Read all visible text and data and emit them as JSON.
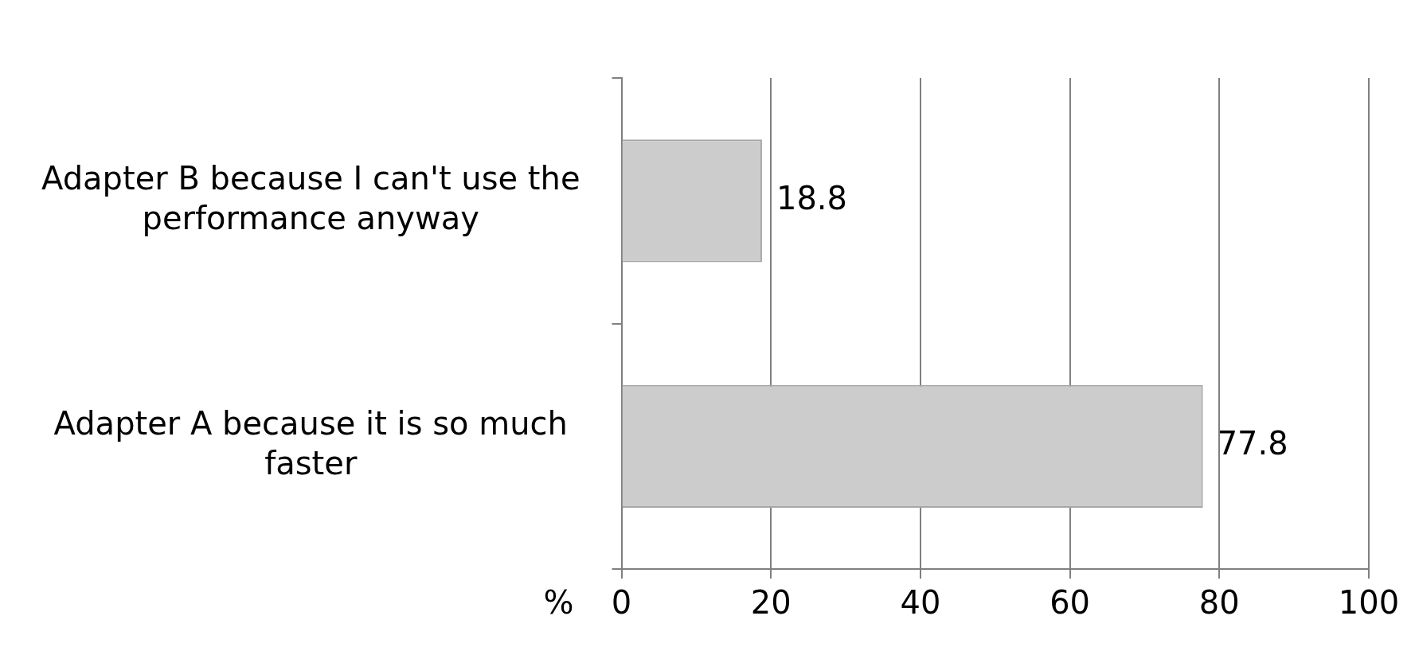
{
  "chart_data": {
    "type": "bar",
    "orientation": "horizontal",
    "xlabel": "%",
    "categories": [
      "Adapter B because I can't use the performance anyway",
      "Adapter A because it is so much faster"
    ],
    "values": [
      18.8,
      77.8
    ],
    "color": "#cccccc",
    "xlim": [
      0,
      100
    ],
    "xticks": [
      0,
      20,
      40,
      60,
      80,
      100
    ],
    "grid": "x",
    "data_labels": true
  }
}
